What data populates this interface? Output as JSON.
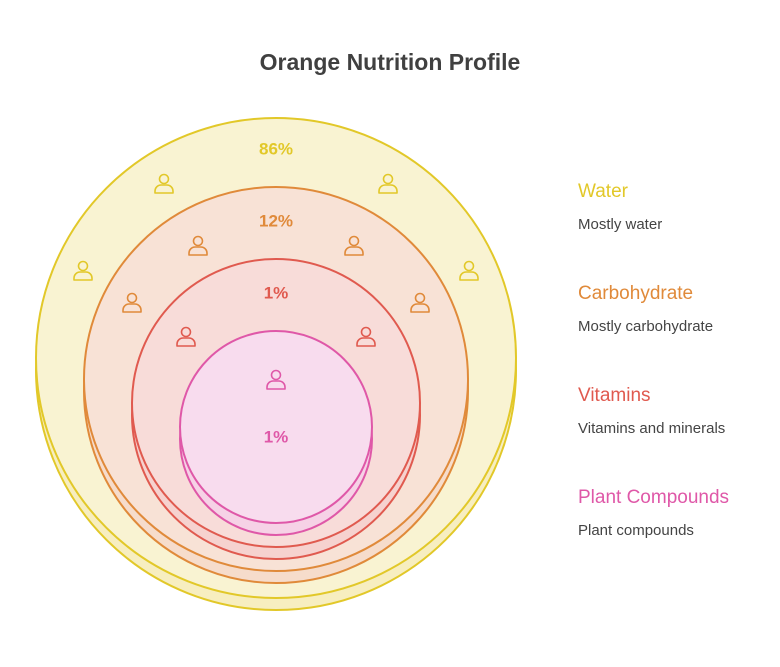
{
  "header": {
    "title": "Orange Nutrition Profile"
  },
  "layers": [
    {
      "label": "Water",
      "description": "Mostly water",
      "percent": "86%"
    },
    {
      "label": "Carbohydrate",
      "description": "Mostly carbohydrate",
      "percent": "12%"
    },
    {
      "label": "Vitamins",
      "description": "Vitamins and minerals",
      "percent": "1%"
    },
    {
      "label": "Plant Compounds",
      "description": "Plant compounds",
      "percent": "1%"
    }
  ]
}
